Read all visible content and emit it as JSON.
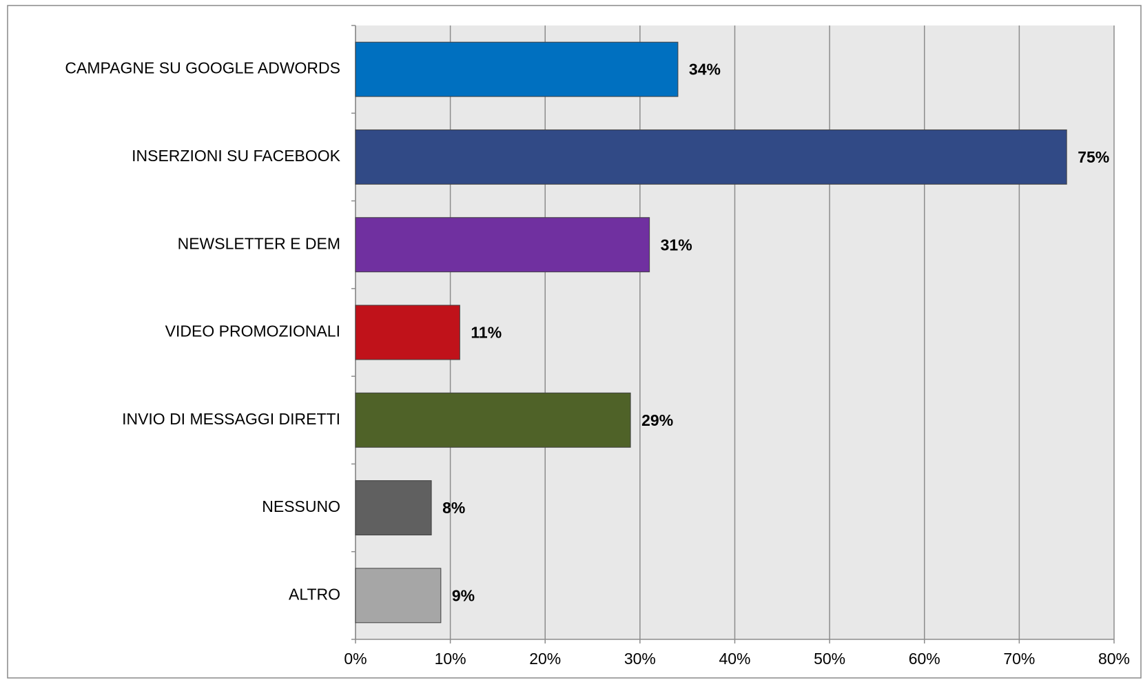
{
  "chart_data": {
    "type": "bar",
    "orientation": "horizontal",
    "categories": [
      "CAMPAGNE SU GOOGLE ADWORDS",
      "INSERZIONI SU FACEBOOK",
      "NEWSLETTER E DEM",
      "VIDEO PROMOZIONALI",
      "INVIO DI MESSAGGI DIRETTI",
      "NESSUNO",
      "ALTRO"
    ],
    "values": [
      34,
      75,
      31,
      11,
      29,
      8,
      9
    ],
    "value_labels": [
      "34%",
      "75%",
      "31%",
      "11%",
      "29%",
      "8%",
      "9%"
    ],
    "colors": [
      "#0070c0",
      "#314a86",
      "#7030a0",
      "#c0121a",
      "#4f6228",
      "#606060",
      "#a6a6a6"
    ],
    "xlim": [
      0,
      80
    ],
    "xticks": [
      {
        "value": 0,
        "label": "0%"
      },
      {
        "value": 10,
        "label": "10%"
      },
      {
        "value": 20,
        "label": "20%"
      },
      {
        "value": 30,
        "label": "30%"
      },
      {
        "value": 40,
        "label": "40%"
      },
      {
        "value": 50,
        "label": "50%"
      },
      {
        "value": 60,
        "label": "60%"
      },
      {
        "value": 70,
        "label": "70%"
      },
      {
        "value": 80,
        "label": "80%"
      }
    ],
    "grid": true
  }
}
